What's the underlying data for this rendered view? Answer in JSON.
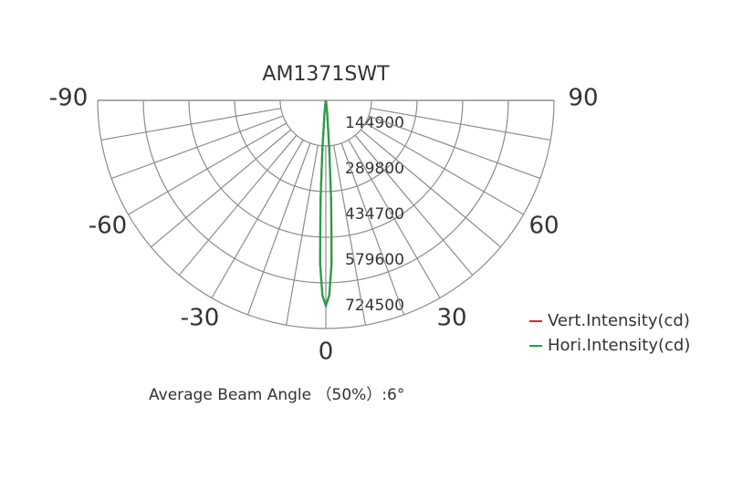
{
  "chart_data": {
    "type": "polar",
    "title": "AM1371SWT",
    "thetalim": [
      -90,
      90
    ],
    "thetaticks": [
      -90,
      -60,
      -30,
      0,
      30,
      60,
      90
    ],
    "thetagrid_step": 10,
    "rlim": [
      0,
      724500
    ],
    "rticks": [
      144900,
      289800,
      434700,
      579600,
      724500
    ],
    "series": [
      {
        "name": "Vert.Intensity(cd)",
        "color": "#e8202a",
        "theta": [
          -10,
          -8,
          -6,
          -4,
          -3,
          -2,
          -1,
          0,
          1,
          2,
          3,
          4,
          6,
          8,
          10
        ],
        "values": [
          4000,
          12000,
          40000,
          160000,
          326000,
          520000,
          620000,
          652000,
          620000,
          520000,
          326000,
          160000,
          40000,
          12000,
          4000
        ]
      },
      {
        "name": "Hori.Intensity(cd)",
        "color": "#1fa34a",
        "theta": [
          -10,
          -8,
          -6,
          -4,
          -3,
          -2,
          -1,
          0,
          1,
          2,
          3,
          4,
          6,
          8,
          10
        ],
        "values": [
          4000,
          12000,
          40000,
          160000,
          326000,
          520000,
          620000,
          652000,
          620000,
          520000,
          326000,
          160000,
          40000,
          12000,
          4000
        ]
      }
    ],
    "footnote": "Average Beam Angle （50%）:6°"
  }
}
